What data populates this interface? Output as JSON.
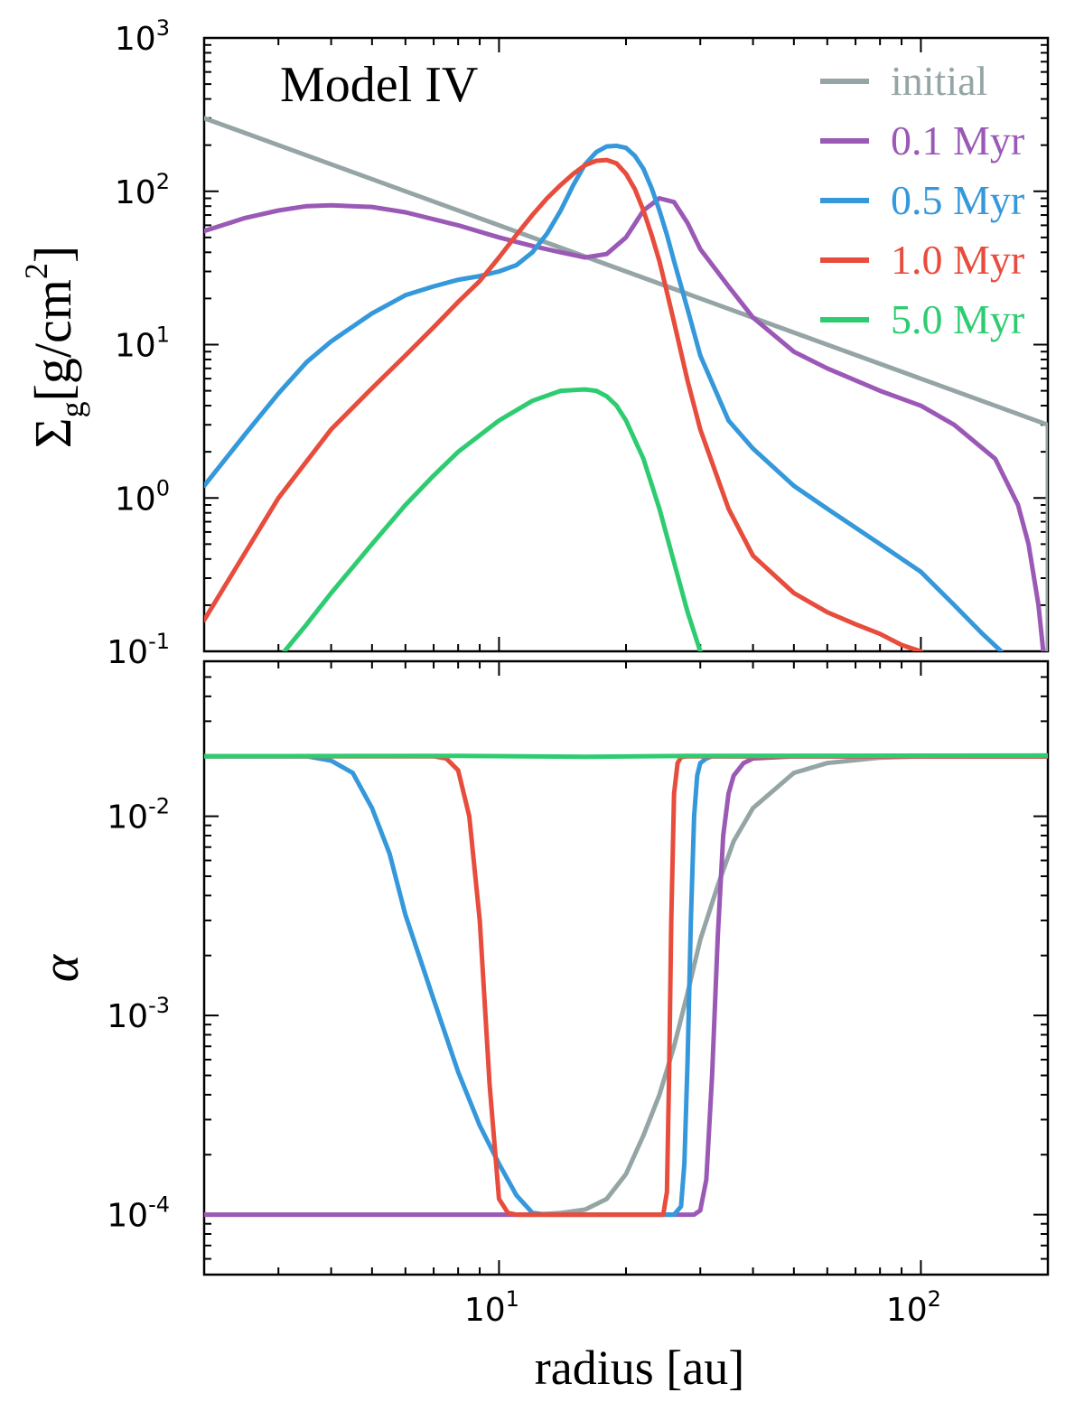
{
  "figure": {
    "model_label": "Model IV"
  },
  "colors": {
    "initial": "#95a5a6",
    "0.1 Myr": "#9b59b6",
    "0.5 Myr": "#3498db",
    "1.0 Myr": "#e74c3c",
    "5.0 Myr": "#2ecc71"
  },
  "chart_data": [
    {
      "type": "line",
      "panel": "top",
      "xscale": "log",
      "yscale": "log",
      "xlim": [
        2.0,
        200
      ],
      "ylim": [
        0.1,
        1000
      ],
      "xlabel": "radius [au]",
      "ylabel": "Σg[g/cm²]",
      "ylabel_parts": {
        "sigma": "Σ",
        "sub": "g",
        "unit": "[g/cm",
        "sup": "2",
        "close": "]"
      },
      "yticks": [
        {
          "base": "10",
          "exp": "3",
          "value": 1000
        },
        {
          "base": "10",
          "exp": "2",
          "value": 100
        },
        {
          "base": "10",
          "exp": "1",
          "value": 10
        },
        {
          "base": "10",
          "exp": "0",
          "value": 1
        },
        {
          "base": "10",
          "exp": "-1",
          "value": 0.1
        }
      ],
      "legend": {
        "placement": "top-right",
        "entries": [
          "initial",
          "0.1 Myr",
          "0.5 Myr",
          "1.0 Myr",
          "5.0 Myr"
        ]
      },
      "series": [
        {
          "name": "initial",
          "x": [
            2.0,
            5,
            10,
            20,
            50,
            100,
            200,
            200,
            200
          ],
          "y": [
            300,
            120,
            60,
            30,
            12,
            6,
            3,
            1,
            0.1
          ]
        },
        {
          "name": "0.1 Myr",
          "x": [
            2.0,
            2.5,
            3,
            3.5,
            4,
            5,
            6,
            8,
            10,
            12,
            14,
            16,
            18,
            20,
            22,
            24,
            26,
            28,
            30,
            35,
            40,
            50,
            60,
            80,
            100,
            120,
            150,
            170,
            180,
            190,
            195
          ],
          "y": [
            55,
            67,
            75,
            80,
            81,
            79,
            73,
            60,
            50,
            44,
            40,
            37,
            39,
            50,
            75,
            90,
            85,
            62,
            42,
            24,
            15,
            9,
            7,
            5,
            4,
            3,
            1.8,
            0.9,
            0.5,
            0.2,
            0.1
          ]
        },
        {
          "name": "0.5 Myr",
          "x": [
            2.0,
            2.5,
            3,
            3.5,
            4,
            5,
            6,
            7,
            8,
            9,
            10,
            11,
            12,
            13,
            14,
            15,
            16,
            17,
            18,
            19,
            20,
            21,
            22,
            23,
            24,
            25,
            26,
            28,
            30,
            35,
            40,
            50,
            60,
            80,
            100,
            120,
            140,
            155
          ],
          "y": [
            1.2,
            2.6,
            4.8,
            7.7,
            10.5,
            16,
            21,
            24,
            26.5,
            28,
            30,
            33,
            40,
            53,
            75,
            110,
            150,
            180,
            196,
            198,
            192,
            170,
            140,
            105,
            75,
            52,
            35,
            17,
            8.5,
            3.2,
            2.1,
            1.2,
            0.85,
            0.5,
            0.33,
            0.2,
            0.13,
            0.1
          ]
        },
        {
          "name": "1.0 Myr",
          "x": [
            2.0,
            3,
            4,
            5,
            6,
            7,
            8,
            9,
            10,
            11,
            12,
            13,
            14,
            15,
            16,
            17,
            18,
            19,
            20,
            21,
            22,
            23,
            24,
            25,
            26,
            28,
            30,
            35,
            40,
            50,
            60,
            70,
            80,
            90,
            100
          ],
          "y": [
            0.16,
            1.0,
            2.8,
            5.2,
            8.5,
            13,
            19,
            26,
            37,
            52,
            70,
            90,
            110,
            130,
            148,
            158,
            160,
            152,
            130,
            103,
            75,
            52,
            35,
            22,
            14,
            5.8,
            2.8,
            0.85,
            0.42,
            0.24,
            0.18,
            0.15,
            0.13,
            0.11,
            0.1
          ]
        },
        {
          "name": "5.0 Myr",
          "x": [
            3.1,
            3.5,
            4,
            5,
            6,
            7,
            8,
            10,
            12,
            14,
            16,
            17,
            18,
            19,
            20,
            22,
            24,
            26,
            28,
            30
          ],
          "y": [
            0.1,
            0.15,
            0.24,
            0.5,
            0.9,
            1.4,
            2.0,
            3.2,
            4.3,
            5.0,
            5.1,
            5.0,
            4.6,
            4.0,
            3.2,
            1.8,
            0.85,
            0.38,
            0.18,
            0.1
          ]
        }
      ]
    },
    {
      "type": "line",
      "panel": "bottom",
      "xscale": "log",
      "yscale": "log",
      "xlim": [
        2.0,
        200
      ],
      "ylim": [
        5e-05,
        0.06
      ],
      "xlabel": "radius [au]",
      "ylabel": "α",
      "xticks": [
        {
          "base": "10",
          "exp": "1",
          "value": 10
        },
        {
          "base": "10",
          "exp": "2",
          "value": 100
        }
      ],
      "yticks": [
        {
          "base": "10",
          "exp": "-2",
          "value": 0.01
        },
        {
          "base": "10",
          "exp": "-3",
          "value": 0.001
        },
        {
          "base": "10",
          "exp": "-4",
          "value": 0.0001
        }
      ],
      "series": [
        {
          "name": "initial",
          "x": [
            2.0,
            12,
            14,
            16,
            18,
            20,
            22,
            24,
            26,
            28,
            30,
            33,
            36,
            40,
            50,
            60,
            80,
            100,
            200
          ],
          "y": [
            0.0001,
            0.0001,
            0.000102,
            0.000106,
            0.00012,
            0.00016,
            0.00025,
            0.0004,
            0.0007,
            0.0013,
            0.0024,
            0.0045,
            0.0075,
            0.011,
            0.0165,
            0.0185,
            0.0197,
            0.02,
            0.02
          ]
        },
        {
          "name": "0.1 Myr",
          "x": [
            2.0,
            29,
            30,
            31,
            32,
            33,
            34,
            35,
            36,
            38,
            40,
            50,
            200
          ],
          "y": [
            0.0001,
            0.0001,
            0.000105,
            0.00015,
            0.0005,
            0.0025,
            0.008,
            0.013,
            0.016,
            0.0185,
            0.0195,
            0.02,
            0.02
          ]
        },
        {
          "name": "0.5 Myr",
          "x": [
            2.0,
            3.5,
            4,
            4.5,
            5,
            5.5,
            6,
            7,
            8,
            9,
            10,
            11,
            12,
            13,
            26,
            27,
            27.5,
            28,
            28.5,
            29,
            29.5,
            30,
            31,
            32,
            35,
            200
          ],
          "y": [
            0.02,
            0.02,
            0.019,
            0.0165,
            0.011,
            0.0065,
            0.0032,
            0.0012,
            0.00052,
            0.00028,
            0.00018,
            0.000125,
            0.000102,
            0.0001,
            0.0001,
            0.00011,
            0.00018,
            0.0006,
            0.003,
            0.01,
            0.016,
            0.0185,
            0.0195,
            0.02,
            0.02,
            0.02
          ]
        },
        {
          "name": "1.0 Myr",
          "x": [
            2.0,
            7,
            7.5,
            8,
            8.5,
            9,
            9.5,
            10,
            10.5,
            11,
            24.5,
            25,
            25.3,
            25.6,
            26,
            26.5,
            27,
            28,
            200
          ],
          "y": [
            0.02,
            0.02,
            0.0195,
            0.017,
            0.01,
            0.003,
            0.00045,
            0.00012,
            0.000102,
            0.0001,
            0.0001,
            0.00013,
            0.0005,
            0.003,
            0.013,
            0.0185,
            0.0198,
            0.02,
            0.02
          ]
        },
        {
          "name": "5.0 Myr",
          "x": [
            2.0,
            8,
            16,
            30,
            200
          ],
          "y": [
            0.02,
            0.0201,
            0.0199,
            0.0201,
            0.0202
          ]
        }
      ]
    }
  ]
}
